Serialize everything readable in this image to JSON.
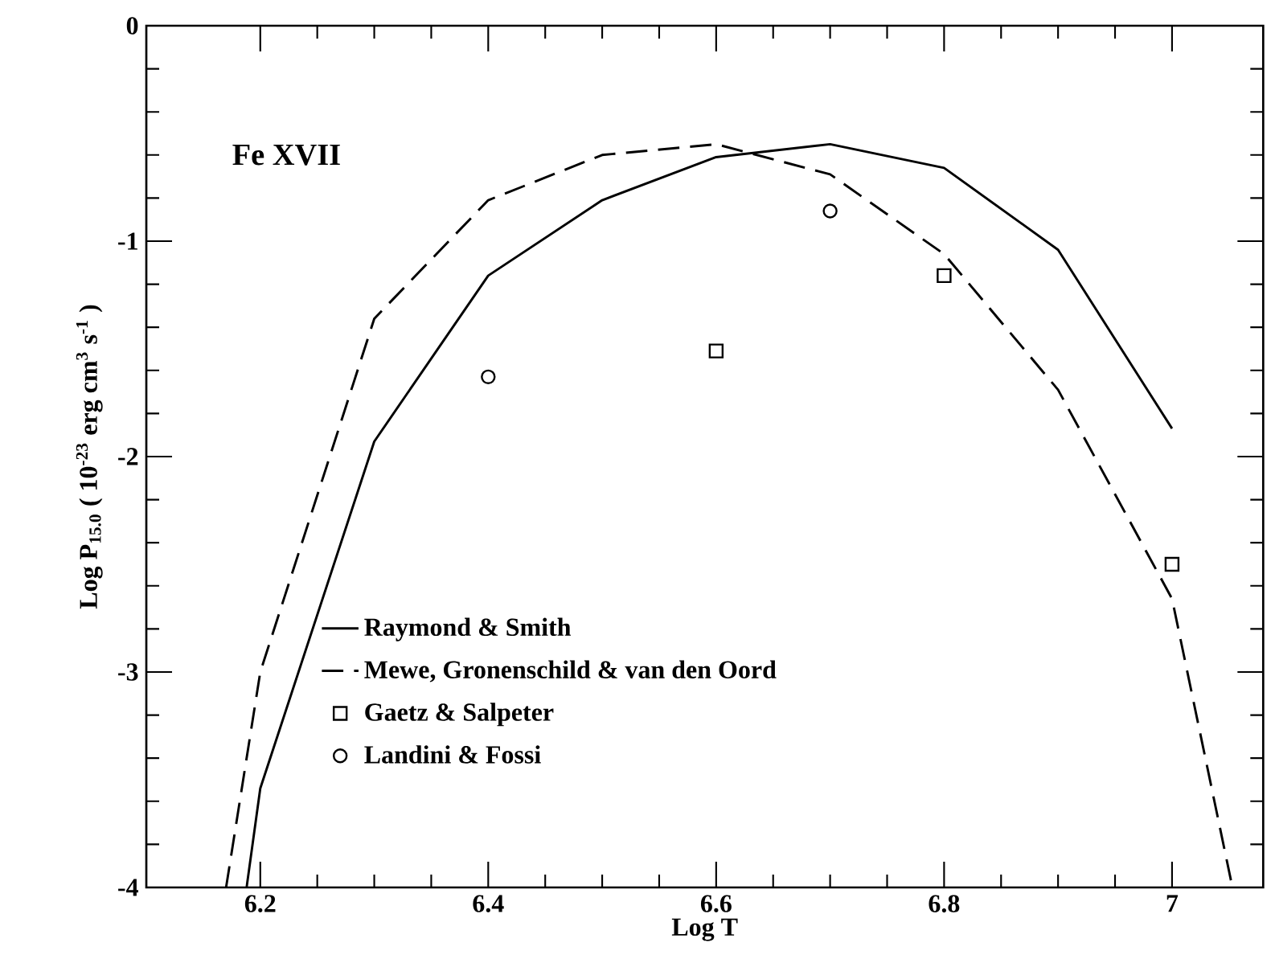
{
  "chart_data": {
    "type": "line",
    "xlabel": "Log T",
    "ylabel": "Log P$_{15.0}$  ( 10$^{-23}$  erg cm$^{3}$ s$^{-1}$ )",
    "annotations": [
      "Fe XVII"
    ],
    "xlim": [
      6.1,
      7.08
    ],
    "ylim": [
      -4,
      0
    ],
    "xticks": [
      6.2,
      6.4,
      6.6,
      6.8,
      7
    ],
    "yticks": [
      -4,
      -3,
      -2,
      -1,
      0
    ],
    "legend": "bottom",
    "series": [
      {
        "name": "Raymond & Smith",
        "line_style": "solid",
        "color": "#000000",
        "x": [
          6.188,
          6.2,
          6.3,
          6.4,
          6.5,
          6.6,
          6.7,
          6.8,
          6.9,
          7.0
        ],
        "values": [
          -4,
          -3.54,
          -1.93,
          -1.16,
          -0.81,
          -0.61,
          -0.55,
          -0.66,
          -1.04,
          -1.87
        ]
      },
      {
        "name": "Mewe, Gronenschild & van den Oord",
        "line_style": "dashed",
        "color": "#000000",
        "x": [
          6.17,
          6.2,
          6.3,
          6.4,
          6.5,
          6.6,
          6.7,
          6.8,
          6.9,
          7.0,
          7.053
        ],
        "values": [
          -4,
          -3.0,
          -1.36,
          -0.81,
          -0.6,
          -0.55,
          -0.69,
          -1.06,
          -1.69,
          -2.66,
          -4
        ]
      },
      {
        "name": "Gaetz & Salpeter",
        "type": "scatter",
        "marker": "square",
        "color": "#000000",
        "x": [
          6.6,
          6.8,
          7.0
        ],
        "values": [
          -1.51,
          -1.16,
          -2.5
        ]
      },
      {
        "name": "Landini & Fossi",
        "type": "scatter",
        "marker": "circle",
        "color": "#000000",
        "x": [
          6.4,
          6.7
        ],
        "values": [
          -1.63,
          -0.86
        ]
      }
    ]
  }
}
